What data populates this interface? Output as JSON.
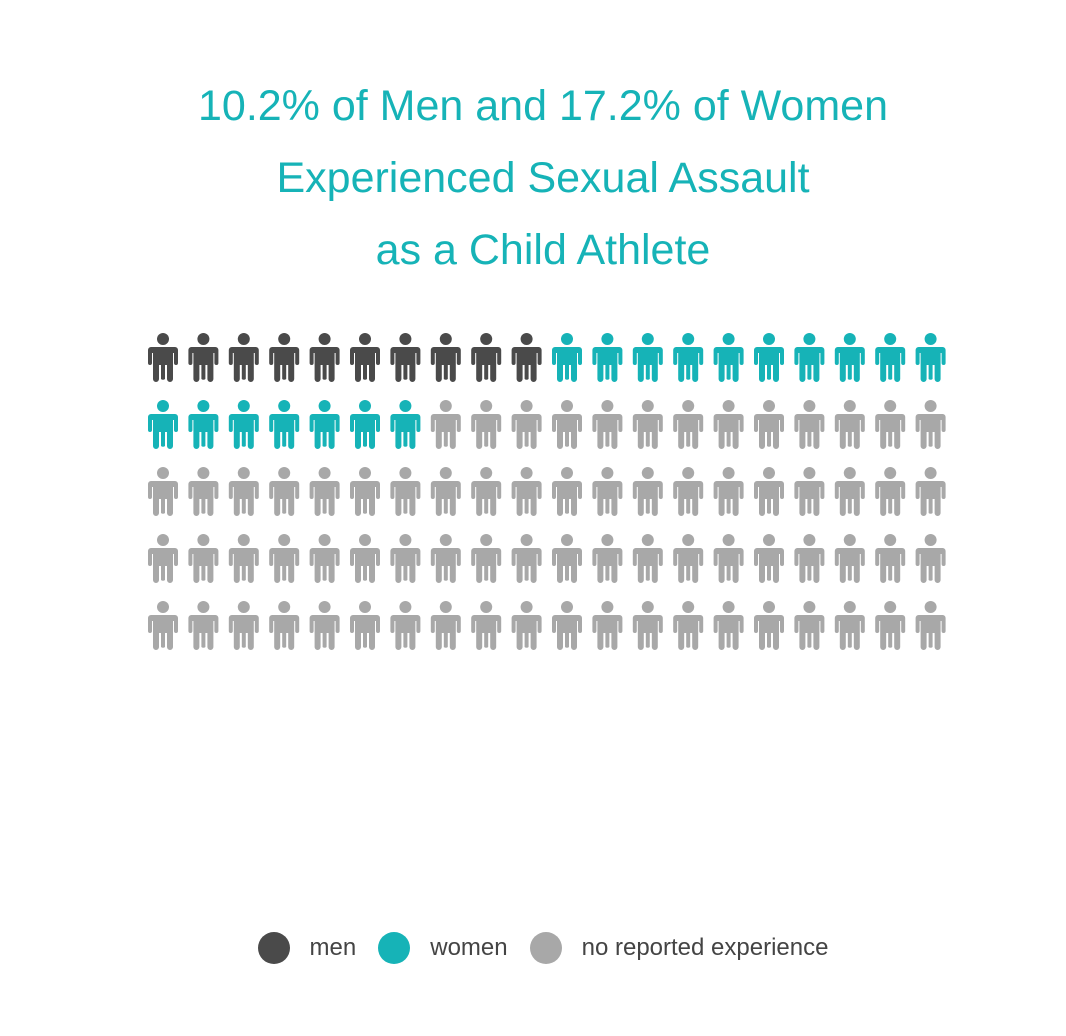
{
  "title_lines": [
    "10.2% of Men and 17.2% of Women",
    "Experienced Sexual Assault",
    "as a Child Athlete"
  ],
  "legend": [
    {
      "label": "men",
      "color": "#4a4a4a"
    },
    {
      "label": "women",
      "color": "#16b3b7"
    },
    {
      "label": "no reported experience",
      "color": "#a8a8a8"
    }
  ],
  "chart_data": {
    "type": "pictogram",
    "icon": "person-icon",
    "total_icons": 100,
    "icons_per_row": 20,
    "rows": 5,
    "categories": [
      {
        "name": "men",
        "count": 10,
        "color": "#4a4a4a"
      },
      {
        "name": "women",
        "count": 17,
        "color": "#16b3b7"
      },
      {
        "name": "no reported experience",
        "count": 73,
        "color": "#a8a8a8"
      }
    ],
    "title": "10.2% of Men and 17.2% of Women Experienced Sexual Assault as a Child Athlete"
  }
}
